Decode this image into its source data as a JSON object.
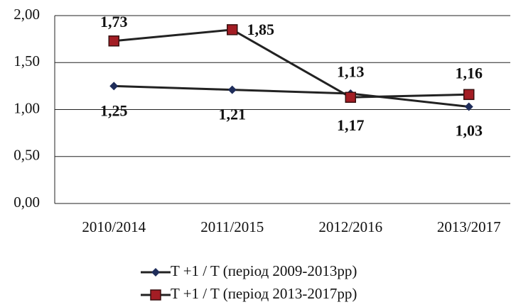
{
  "chart_data": {
    "type": "line",
    "categories": [
      "2010/2014",
      "2011/2015",
      "2012/2016",
      "2013/2017"
    ],
    "series": [
      {
        "name": "T +1 /  T (період 2009-2013рр)",
        "color": "#1f2d5a",
        "marker": "diamond",
        "values": [
          1.25,
          1.21,
          1.17,
          1.03
        ],
        "value_labels": [
          "1,25",
          "1,21",
          "1,17",
          "1,03"
        ]
      },
      {
        "name": "T +1 /  T (період 2013-2017рр)",
        "color": "#a31d24",
        "marker": "square",
        "values": [
          1.73,
          1.85,
          1.13,
          1.16
        ],
        "value_labels": [
          "1,73",
          "1,85",
          "1,13",
          "1,16"
        ]
      }
    ],
    "ylim": [
      0,
      2
    ],
    "yticks": [
      {
        "value": 0,
        "label": "0,00"
      },
      {
        "value": 0.5,
        "label": "0,50"
      },
      {
        "value": 1,
        "label": "1,00"
      },
      {
        "value": 1.5,
        "label": "1,50"
      },
      {
        "value": 2,
        "label": "2,00"
      }
    ],
    "grid": true,
    "legend": "bottom"
  }
}
